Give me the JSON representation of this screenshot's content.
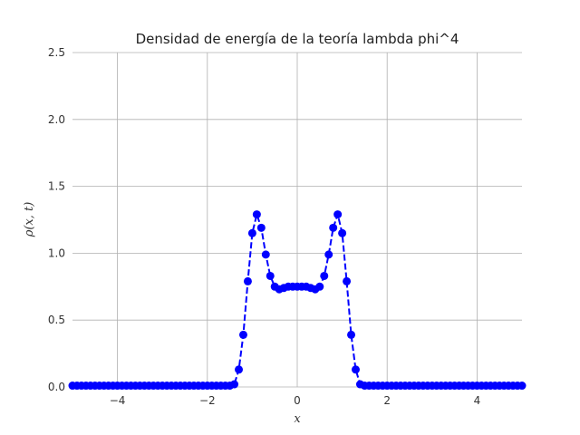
{
  "chart_data": {
    "type": "line",
    "title": "Densidad de energía de la teoría lambda phi^4",
    "xlabel": "x",
    "ylabel": "ρ(x, t)",
    "xlim": [
      -5,
      5
    ],
    "ylim": [
      0,
      2.5
    ],
    "grid": true,
    "x_ticks": [
      -4,
      -2,
      0,
      2,
      4
    ],
    "x_tick_labels": [
      "−4",
      "−2",
      "0",
      "2",
      "4"
    ],
    "y_ticks": [
      0,
      0.5,
      1.0,
      1.5,
      2.0,
      2.5
    ],
    "y_tick_labels": [
      "0.0",
      "0.5",
      "1.0",
      "1.5",
      "2.0",
      "2.5"
    ],
    "colors": {
      "series": "#0000ff",
      "grid": "#b0b0b0"
    },
    "series": [
      {
        "style": "dashed line with circle markers",
        "x": [
          -5.0,
          -4.9,
          -4.8,
          -4.7,
          -4.6,
          -4.5,
          -4.4,
          -4.3,
          -4.2,
          -4.1,
          -4.0,
          -3.9,
          -3.8,
          -3.7,
          -3.6,
          -3.5,
          -3.4,
          -3.3,
          -3.2,
          -3.1,
          -3.0,
          -2.9,
          -2.8,
          -2.7,
          -2.6,
          -2.5,
          -2.4,
          -2.3,
          -2.2,
          -2.1,
          -2.0,
          -1.9,
          -1.8,
          -1.7,
          -1.6,
          -1.5,
          -1.4,
          -1.3,
          -1.2,
          -1.1,
          -1.0,
          -0.9,
          -0.8,
          -0.7,
          -0.6,
          -0.5,
          -0.4,
          -0.3,
          -0.2,
          -0.1,
          0.0,
          0.1,
          0.2,
          0.3,
          0.4,
          0.5,
          0.6,
          0.7,
          0.8,
          0.9,
          1.0,
          1.1,
          1.2,
          1.3,
          1.4,
          1.5,
          1.6,
          1.7,
          1.8,
          1.9,
          2.0,
          2.1,
          2.2,
          2.3,
          2.4,
          2.5,
          2.6,
          2.7,
          2.8,
          2.9,
          3.0,
          3.1,
          3.2,
          3.3,
          3.4,
          3.5,
          3.6,
          3.7,
          3.8,
          3.9,
          4.0,
          4.1,
          4.2,
          4.3,
          4.4,
          4.5,
          4.6,
          4.7,
          4.8,
          4.9,
          5.0
        ],
        "y": [
          0.01,
          0.01,
          0.01,
          0.01,
          0.01,
          0.01,
          0.01,
          0.01,
          0.01,
          0.01,
          0.01,
          0.01,
          0.01,
          0.01,
          0.01,
          0.01,
          0.01,
          0.01,
          0.01,
          0.01,
          0.01,
          0.01,
          0.01,
          0.01,
          0.01,
          0.01,
          0.01,
          0.01,
          0.01,
          0.01,
          0.01,
          0.01,
          0.01,
          0.01,
          0.01,
          0.01,
          0.02,
          0.13,
          0.39,
          0.79,
          1.15,
          1.29,
          1.19,
          0.99,
          0.83,
          0.75,
          0.73,
          0.74,
          0.75,
          0.75,
          0.75,
          0.75,
          0.75,
          0.74,
          0.73,
          0.75,
          0.83,
          0.99,
          1.19,
          1.29,
          1.15,
          0.79,
          0.39,
          0.13,
          0.02,
          0.01,
          0.01,
          0.01,
          0.01,
          0.01,
          0.01,
          0.01,
          0.01,
          0.01,
          0.01,
          0.01,
          0.01,
          0.01,
          0.01,
          0.01,
          0.01,
          0.01,
          0.01,
          0.01,
          0.01,
          0.01,
          0.01,
          0.01,
          0.01,
          0.01,
          0.01,
          0.01,
          0.01,
          0.01,
          0.01,
          0.01,
          0.01,
          0.01,
          0.01,
          0.01,
          0.01
        ]
      }
    ]
  }
}
